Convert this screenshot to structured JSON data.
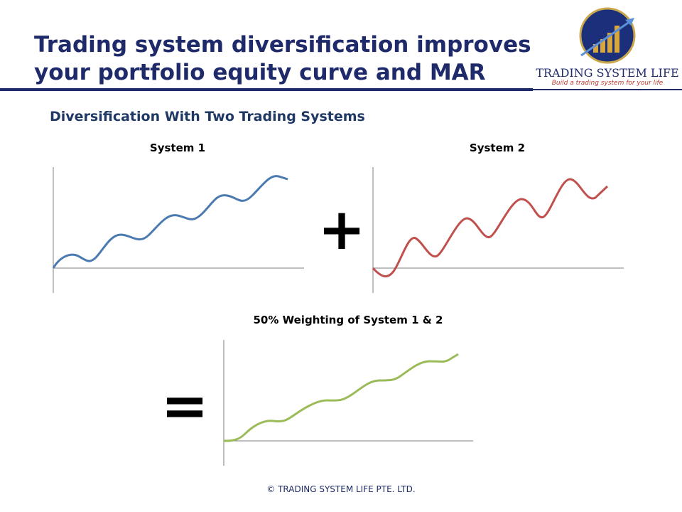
{
  "header": {
    "title_lines": [
      "Trading system diversification improves",
      "your portfolio equity curve and MAR"
    ]
  },
  "logo": {
    "name": "Trading System Life",
    "tagline": "Build a trading system for your life"
  },
  "subtitle": "Diversification With Two Trading Systems",
  "panels": [
    {
      "label": "System 1"
    },
    {
      "label": "System 2"
    },
    {
      "label": "50% Weighting of System 1 & 2"
    }
  ],
  "operators": [
    "+",
    "="
  ],
  "footer": "© TRADING  SYSTEM LIFE PTE. LTD."
}
